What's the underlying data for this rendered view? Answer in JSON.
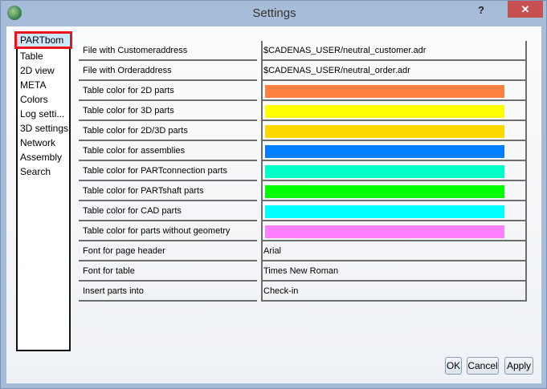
{
  "window": {
    "title": "Settings",
    "help_label": "?",
    "close_label": "✕"
  },
  "sidebar": {
    "items": [
      {
        "label": "PARTbom",
        "selected": true
      },
      {
        "label": "Table"
      },
      {
        "label": "2D view"
      },
      {
        "label": "META"
      },
      {
        "label": "Colors"
      },
      {
        "label": "Log setti..."
      },
      {
        "label": "3D settings"
      },
      {
        "label": "Network"
      },
      {
        "label": "Assembly"
      },
      {
        "label": "Search"
      }
    ]
  },
  "settings": [
    {
      "label": "File with Customeraddress",
      "value": "$CADENAS_USER/neutral_customer.adr"
    },
    {
      "label": "File with Orderaddress",
      "value": "$CADENAS_USER/neutral_order.adr"
    },
    {
      "label": "Table color for 2D parts",
      "color": "#ff8040"
    },
    {
      "label": "Table color for 3D parts",
      "color": "#ffff00"
    },
    {
      "label": "Table color for 2D/3D parts",
      "color": "#ffd800"
    },
    {
      "label": "Table color for assemblies",
      "color": "#0080ff"
    },
    {
      "label": "Table color for PARTconnection parts",
      "color": "#00ffc8"
    },
    {
      "label": "Table color for PARTshaft parts",
      "color": "#00ff00"
    },
    {
      "label": "Table color for CAD parts",
      "color": "#00ffff"
    },
    {
      "label": "Table color for parts without geometry",
      "color": "#ff80ff"
    },
    {
      "label": "Font for page header",
      "value": "Arial"
    },
    {
      "label": "Font for table",
      "value": "Times New Roman"
    },
    {
      "label": "Insert parts into",
      "value": "Check-in"
    }
  ],
  "buttons": {
    "ok": "OK",
    "cancel": "Cancel",
    "apply": "Apply"
  }
}
